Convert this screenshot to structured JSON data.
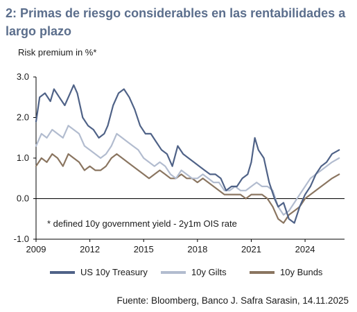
{
  "title": "2: Primas de riesgo considerables en las rentabilidades a largo plazo",
  "unit_label": "Risk premium in %*",
  "footnote": "* defined 10y government yield - 2y1m OIS rate",
  "source": "Fuente: Bloomberg, Banco J. Safra Sarasin, 14.11.2025",
  "colors": {
    "us": "#4f6287",
    "gilts": "#b2bccf",
    "bunds": "#8a7560",
    "axis": "#000000"
  },
  "chart_data": {
    "type": "line",
    "xlabel": "",
    "ylabel": "Risk premium in %*",
    "xlim": [
      2009,
      2026.2
    ],
    "ylim": [
      -1.0,
      3.0
    ],
    "x_ticks": [
      "2009",
      "2012",
      "2015",
      "2018",
      "2021",
      "2024"
    ],
    "y_ticks": [
      "3.0",
      "2.0",
      "1.0",
      "0.0",
      "-1.0"
    ],
    "legend_position": "bottom",
    "series": [
      {
        "name": "US 10y Treasury",
        "color": "#4f6287",
        "x": [
          2009.0,
          2009.2,
          2009.5,
          2009.8,
          2010.0,
          2010.3,
          2010.6,
          2010.9,
          2011.1,
          2011.3,
          2011.6,
          2011.9,
          2012.2,
          2012.5,
          2012.8,
          2013.0,
          2013.3,
          2013.6,
          2013.9,
          2014.2,
          2014.5,
          2014.8,
          2015.1,
          2015.4,
          2015.7,
          2016.0,
          2016.3,
          2016.6,
          2016.9,
          2017.2,
          2017.5,
          2017.8,
          2018.1,
          2018.4,
          2018.7,
          2019.0,
          2019.3,
          2019.6,
          2019.9,
          2020.2,
          2020.5,
          2020.8,
          2021.0,
          2021.2,
          2021.4,
          2021.7,
          2022.0,
          2022.3,
          2022.5,
          2022.8,
          2023.1,
          2023.4,
          2023.7,
          2024.0,
          2024.3,
          2024.6,
          2024.9,
          2025.2,
          2025.5,
          2025.9
        ],
        "y": [
          1.9,
          2.5,
          2.6,
          2.4,
          2.7,
          2.5,
          2.3,
          2.6,
          2.8,
          2.6,
          2.0,
          1.8,
          1.7,
          1.5,
          1.6,
          1.8,
          2.3,
          2.6,
          2.7,
          2.5,
          2.2,
          1.8,
          1.6,
          1.6,
          1.4,
          1.2,
          1.1,
          0.8,
          1.3,
          1.1,
          1.0,
          0.9,
          0.8,
          0.7,
          0.6,
          0.6,
          0.5,
          0.2,
          0.3,
          0.3,
          0.5,
          0.6,
          0.9,
          1.5,
          1.2,
          1.0,
          0.4,
          0.0,
          -0.2,
          -0.1,
          -0.5,
          -0.6,
          -0.2,
          0.1,
          0.3,
          0.6,
          0.8,
          0.9,
          1.1,
          1.2
        ]
      },
      {
        "name": "10y Gilts",
        "color": "#b2bccf",
        "x": [
          2009.0,
          2009.3,
          2009.6,
          2009.9,
          2010.2,
          2010.5,
          2010.8,
          2011.1,
          2011.4,
          2011.7,
          2012.0,
          2012.3,
          2012.6,
          2012.9,
          2013.2,
          2013.5,
          2013.8,
          2014.1,
          2014.4,
          2014.7,
          2015.0,
          2015.3,
          2015.6,
          2015.9,
          2016.2,
          2016.5,
          2016.8,
          2017.1,
          2017.4,
          2017.7,
          2018.0,
          2018.3,
          2018.6,
          2018.9,
          2019.2,
          2019.5,
          2019.8,
          2020.1,
          2020.4,
          2020.7,
          2021.0,
          2021.3,
          2021.6,
          2021.9,
          2022.2,
          2022.5,
          2022.8,
          2023.1,
          2023.4,
          2023.7,
          2024.0,
          2024.3,
          2024.6,
          2024.9,
          2025.2,
          2025.5,
          2025.9
        ],
        "y": [
          1.3,
          1.6,
          1.5,
          1.7,
          1.6,
          1.5,
          1.8,
          1.7,
          1.6,
          1.3,
          1.2,
          1.1,
          1.0,
          1.1,
          1.3,
          1.6,
          1.5,
          1.4,
          1.3,
          1.2,
          1.0,
          0.9,
          0.8,
          0.9,
          0.8,
          0.6,
          0.5,
          0.7,
          0.6,
          0.5,
          0.5,
          0.6,
          0.5,
          0.4,
          0.4,
          0.2,
          0.2,
          0.3,
          0.2,
          0.2,
          0.3,
          0.4,
          0.3,
          0.3,
          0.2,
          -0.2,
          -0.4,
          -0.3,
          -0.1,
          0.1,
          0.3,
          0.5,
          0.6,
          0.7,
          0.8,
          0.9,
          1.0
        ]
      },
      {
        "name": "10y Bunds",
        "color": "#8a7560",
        "x": [
          2009.0,
          2009.3,
          2009.6,
          2009.9,
          2010.2,
          2010.5,
          2010.8,
          2011.1,
          2011.4,
          2011.7,
          2012.0,
          2012.3,
          2012.6,
          2012.9,
          2013.2,
          2013.5,
          2013.8,
          2014.1,
          2014.4,
          2014.7,
          2015.0,
          2015.3,
          2015.6,
          2015.9,
          2016.2,
          2016.5,
          2016.8,
          2017.1,
          2017.4,
          2017.7,
          2018.0,
          2018.3,
          2018.6,
          2018.9,
          2019.2,
          2019.5,
          2019.8,
          2020.1,
          2020.4,
          2020.7,
          2021.0,
          2021.3,
          2021.6,
          2021.9,
          2022.2,
          2022.5,
          2022.8,
          2023.1,
          2023.4,
          2023.7,
          2024.0,
          2024.3,
          2024.6,
          2024.9,
          2025.2,
          2025.5,
          2025.9
        ],
        "y": [
          0.8,
          1.0,
          0.9,
          1.1,
          1.0,
          0.8,
          1.1,
          1.0,
          0.9,
          0.7,
          0.8,
          0.7,
          0.7,
          0.8,
          1.0,
          1.1,
          1.0,
          0.9,
          0.8,
          0.7,
          0.6,
          0.5,
          0.6,
          0.7,
          0.6,
          0.5,
          0.5,
          0.6,
          0.5,
          0.5,
          0.4,
          0.5,
          0.4,
          0.3,
          0.2,
          0.1,
          0.1,
          0.1,
          0.1,
          0.0,
          0.1,
          0.1,
          0.1,
          0.0,
          -0.2,
          -0.5,
          -0.6,
          -0.4,
          -0.3,
          -0.2,
          0.0,
          0.1,
          0.2,
          0.3,
          0.4,
          0.5,
          0.6
        ]
      }
    ]
  }
}
